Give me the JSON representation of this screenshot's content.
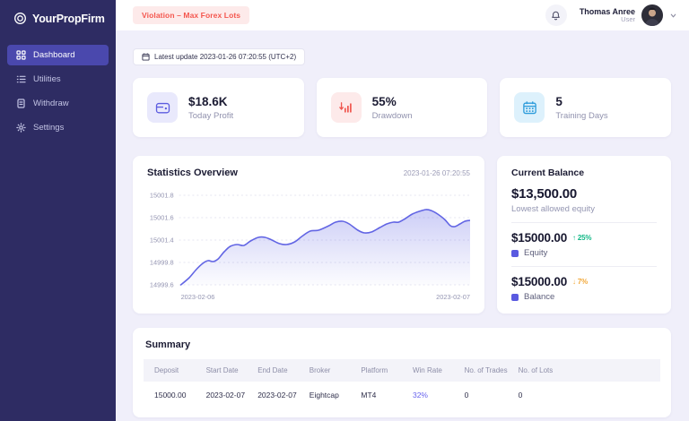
{
  "app": {
    "name": "YourPropFirm"
  },
  "sidebar": {
    "items": [
      {
        "label": "Dashboard",
        "active": true
      },
      {
        "label": "Utilities",
        "active": false
      },
      {
        "label": "Withdraw",
        "active": false
      },
      {
        "label": "Settings",
        "active": false
      }
    ]
  },
  "topbar": {
    "violation_badge": "Violation – Max Forex Lots",
    "user_name": "Thomas Anree",
    "user_role": "User"
  },
  "update_chip": {
    "label": "Latest update 2023-01-26 07:20:55 (UTC+2)"
  },
  "stats": {
    "cards": [
      {
        "value": "$18.6K",
        "label": "Today Profit",
        "icon": "wallet-icon",
        "color": "#5c5cdf",
        "bg": "#e9e9fc"
      },
      {
        "value": "55%",
        "label": "Drawdown",
        "icon": "drawdown-chart-icon",
        "color": "#f0564f",
        "bg": "#fdeaea"
      },
      {
        "value": "5",
        "label": "Training Days",
        "icon": "calendar-icon",
        "color": "#2d9cdb",
        "bg": "#ddf1fc"
      }
    ]
  },
  "chart": {
    "title": "Statistics Overview",
    "timestamp": "2023-01-26 07:20:55"
  },
  "chart_data": {
    "type": "line",
    "title": "Statistics Overview",
    "timestamp": "2023-01-26 07:20:55",
    "y_ticks": [
      "15001.8",
      "15001.6",
      "15001.4",
      "14999.8",
      "14999.6"
    ],
    "x_ticks": [
      "2023-02-06",
      "2023-02-07"
    ],
    "line_color": "#6265e4",
    "area_color": "#6265e4",
    "grid": true,
    "legend": false,
    "note": "points are [x_fraction_of_axis, y_in_tick_units_from_bottom]; tick units: 0=14999.6, 1=14999.8, 2=15001.4, 3=15001.6, 4=15001.8",
    "points": [
      [
        0.0,
        0.0
      ],
      [
        0.029,
        0.32
      ],
      [
        0.053,
        0.68
      ],
      [
        0.076,
        0.96
      ],
      [
        0.094,
        1.08
      ],
      [
        0.112,
        1.04
      ],
      [
        0.129,
        1.16
      ],
      [
        0.15,
        1.48
      ],
      [
        0.171,
        1.72
      ],
      [
        0.194,
        1.8
      ],
      [
        0.218,
        1.76
      ],
      [
        0.241,
        1.96
      ],
      [
        0.268,
        2.12
      ],
      [
        0.291,
        2.12
      ],
      [
        0.315,
        2.0
      ],
      [
        0.341,
        1.84
      ],
      [
        0.365,
        1.8
      ],
      [
        0.394,
        1.92
      ],
      [
        0.418,
        2.16
      ],
      [
        0.447,
        2.4
      ],
      [
        0.476,
        2.44
      ],
      [
        0.512,
        2.64
      ],
      [
        0.535,
        2.8
      ],
      [
        0.559,
        2.84
      ],
      [
        0.582,
        2.72
      ],
      [
        0.612,
        2.44
      ],
      [
        0.635,
        2.32
      ],
      [
        0.659,
        2.36
      ],
      [
        0.688,
        2.56
      ],
      [
        0.712,
        2.72
      ],
      [
        0.735,
        2.8
      ],
      [
        0.753,
        2.8
      ],
      [
        0.776,
        2.96
      ],
      [
        0.8,
        3.16
      ],
      [
        0.824,
        3.28
      ],
      [
        0.847,
        3.36
      ],
      [
        0.865,
        3.32
      ],
      [
        0.888,
        3.16
      ],
      [
        0.912,
        2.92
      ],
      [
        0.932,
        2.64
      ],
      [
        0.947,
        2.6
      ],
      [
        0.965,
        2.72
      ],
      [
        0.982,
        2.84
      ],
      [
        1.0,
        2.88
      ]
    ]
  },
  "balance": {
    "title": "Current Balance",
    "lowest": {
      "value": "$13,500.00",
      "label": "Lowest allowed equity"
    },
    "rows": [
      {
        "value": "$15000.00",
        "delta": "↑ 25%",
        "direction": "up",
        "delta_color": "#12b886",
        "label": "Equity"
      },
      {
        "value": "$15000.00",
        "delta": "↓ 7%",
        "direction": "down",
        "delta_color": "#f2a93b",
        "label": "Balance"
      }
    ]
  },
  "summary": {
    "title": "Summary",
    "columns": [
      "Deposit",
      "Start Date",
      "End Date",
      "Broker",
      "Platform",
      "Win Rate",
      "No. of Trades",
      "No. of Lots"
    ],
    "rows": [
      [
        "15000.00",
        "2023-02-07",
        "2023-02-07",
        "Eightcap",
        "MT4",
        "32%",
        "0",
        "0"
      ]
    ]
  },
  "colors": {
    "sidebar_bg": "#2e2c63",
    "active_nav_bg": "#4a48ad",
    "accent_indigo": "#5c5cdf",
    "chart_line": "#6265e4",
    "violation_text": "#f4564e",
    "violation_bg": "#fdeaea",
    "drawdown_red": "#f0564f",
    "calendar_blue": "#2d9cdb",
    "positive_green": "#12b886",
    "warning_orange": "#f2a93b",
    "win_rate_indigo": "#6763ee",
    "page_bg": "#f0effa",
    "card_bg": "#ffffff"
  }
}
